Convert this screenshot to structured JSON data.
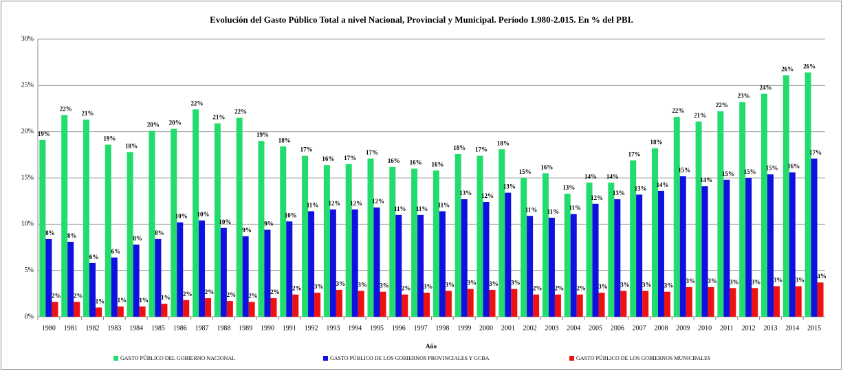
{
  "chart_data": {
    "type": "bar",
    "title": "Evolución del Gasto Público Total a nivel  Nacional, Provincial y Municipal.  Período 1.980-2.015. En % del PBI.",
    "x_label": "Año",
    "categories": [
      "1980",
      "1981",
      "1982",
      "1983",
      "1984",
      "1985",
      "1986",
      "1987",
      "1988",
      "1989",
      "1990",
      "1991",
      "1992",
      "1993",
      "1994",
      "1995",
      "1996",
      "1997",
      "1998",
      "1999",
      "2000",
      "2001",
      "2002",
      "2003",
      "2004",
      "2005",
      "2006",
      "2007",
      "2008",
      "2009",
      "2010",
      "2011",
      "2012",
      "2013",
      "2014",
      "2015"
    ],
    "series": [
      {
        "name": "GASTO PÚBLICO DEL GOBIERNO NACIONAL",
        "color": "#22dd6e",
        "values": [
          19.1,
          21.8,
          21.3,
          18.6,
          17.8,
          20.1,
          20.3,
          22.4,
          20.9,
          21.5,
          19.0,
          18.4,
          17.4,
          16.4,
          16.5,
          17.1,
          16.2,
          16.0,
          15.8,
          17.6,
          17.4,
          18.1,
          15.0,
          15.5,
          13.3,
          14.5,
          14.5,
          16.9,
          18.2,
          21.6,
          21.1,
          22.2,
          23.2,
          24.1,
          26.1,
          26.4
        ],
        "value_labels": [
          "19%",
          "22%",
          "21%",
          "19%",
          "18%",
          "20%",
          "20%",
          "22%",
          "21%",
          "22%",
          "19%",
          "18%",
          "17%",
          "16%",
          "17%",
          "17%",
          "16%",
          "16%",
          "16%",
          "18%",
          "17%",
          "18%",
          "15%",
          "16%",
          "13%",
          "14%",
          "14%",
          "17%",
          "18%",
          "22%",
          "21%",
          "22%",
          "23%",
          "24%",
          "26%",
          "26%"
        ]
      },
      {
        "name": "GASTO PÚBLICO DE LOS GOBIERNOS PROVINCIALES Y GCBA",
        "color": "#1010e0",
        "values": [
          8.4,
          8.1,
          5.8,
          6.4,
          7.8,
          8.4,
          10.2,
          10.4,
          9.6,
          8.7,
          9.4,
          10.3,
          11.4,
          11.6,
          11.6,
          11.8,
          11.0,
          11.0,
          11.4,
          12.7,
          12.4,
          13.4,
          10.9,
          10.7,
          11.1,
          12.2,
          12.7,
          13.2,
          13.6,
          15.2,
          14.1,
          14.8,
          15.0,
          15.4,
          15.6,
          17.1
        ],
        "value_labels": [
          "8%",
          "8%",
          "6%",
          "6%",
          "8%",
          "8%",
          "10%",
          "10%",
          "10%",
          "9%",
          "9%",
          "10%",
          "11%",
          "12%",
          "12%",
          "12%",
          "11%",
          "11%",
          "11%",
          "13%",
          "12%",
          "13%",
          "11%",
          "11%",
          "11%",
          "12%",
          "13%",
          "13%",
          "14%",
          "15%",
          "14%",
          "15%",
          "15%",
          "15%",
          "16%",
          "17%"
        ]
      },
      {
        "name": "GASTO PÚBLICO DE LOS GOBIERNOS MUNICIPALES",
        "color": "#ee1111",
        "values": [
          1.6,
          1.6,
          1.0,
          1.1,
          1.1,
          1.4,
          1.8,
          2.0,
          1.7,
          1.6,
          2.0,
          2.4,
          2.6,
          2.9,
          2.8,
          2.7,
          2.4,
          2.6,
          2.8,
          3.0,
          2.9,
          3.0,
          2.4,
          2.4,
          2.4,
          2.6,
          2.8,
          2.8,
          2.7,
          3.2,
          3.2,
          3.1,
          3.1,
          3.3,
          3.3,
          3.7
        ],
        "value_labels": [
          "2%",
          "2%",
          "1%",
          "1%",
          "1%",
          "1%",
          "2%",
          "2%",
          "2%",
          "2%",
          "2%",
          "2%",
          "3%",
          "3%",
          "3%",
          "3%",
          "2%",
          "3%",
          "3%",
          "3%",
          "3%",
          "3%",
          "2%",
          "2%",
          "2%",
          "3%",
          "3%",
          "3%",
          "3%",
          "3%",
          "3%",
          "3%",
          "3%",
          "3%",
          "3%",
          "4%"
        ]
      }
    ],
    "ylim": [
      0,
      30
    ],
    "yticks": [
      {
        "value": 0,
        "label": "0%"
      },
      {
        "value": 5,
        "label": "5%"
      },
      {
        "value": 10,
        "label": "10%"
      },
      {
        "value": 15,
        "label": "15%"
      },
      {
        "value": 20,
        "label": "20%"
      },
      {
        "value": 25,
        "label": "25%"
      },
      {
        "value": 30,
        "label": "30%"
      }
    ],
    "grid": true,
    "legend": "bottom"
  }
}
